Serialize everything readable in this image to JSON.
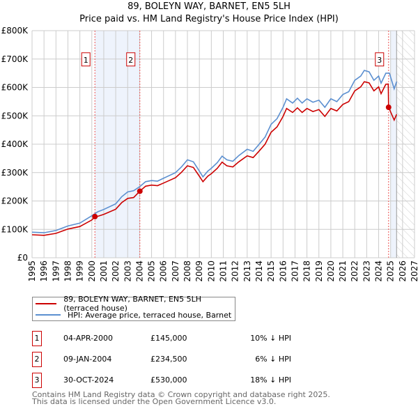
{
  "title": "89, BOLEYN WAY, BARNET, EN5 5LH",
  "subtitle": "Price paid vs. HM Land Registry's House Price Index (HPI)",
  "chart_data": {
    "type": "line",
    "title": "89, BOLEYN WAY, BARNET, EN5 5LH",
    "subtitle": "Price paid vs. HM Land Registry's House Price Index (HPI)",
    "xlim": [
      1995,
      2027
    ],
    "ylim": [
      0,
      800000
    ],
    "grid": true,
    "x_ticks": [
      "1995",
      "1996",
      "1997",
      "1998",
      "1999",
      "2000",
      "2001",
      "2002",
      "2003",
      "2004",
      "2005",
      "2006",
      "2007",
      "2008",
      "2009",
      "2010",
      "2011",
      "2012",
      "2013",
      "2014",
      "2015",
      "2016",
      "2017",
      "2018",
      "2019",
      "2020",
      "2021",
      "2022",
      "2023",
      "2024",
      "2025",
      "2026",
      "2027"
    ],
    "y_ticks": [
      {
        "v": 0,
        "label": "£0"
      },
      {
        "v": 100000,
        "label": "£100K"
      },
      {
        "v": 200000,
        "label": "£200K"
      },
      {
        "v": 300000,
        "label": "£300K"
      },
      {
        "v": 400000,
        "label": "£400K"
      },
      {
        "v": 500000,
        "label": "£500K"
      },
      {
        "v": 600000,
        "label": "£600K"
      },
      {
        "v": 700000,
        "label": "£700K"
      },
      {
        "v": 800000,
        "label": "£800K"
      }
    ],
    "shaded_ranges": [
      [
        2000.26,
        2004.02
      ],
      [
        2025.0,
        2025.5
      ]
    ],
    "forecast_hatch_from": 2025.5,
    "series": [
      {
        "name": "89, BOLEYN WAY, BARNET, EN5 5LH (terraced house)",
        "color": "#cc0000",
        "x": [
          1995,
          1996,
          1997,
          1998,
          1999,
          2000,
          2000.26,
          2000.5,
          2001,
          2002,
          2002.5,
          2003,
          2003.5,
          2004.02,
          2004.5,
          2005,
          2005.5,
          2006,
          2007,
          2007.5,
          2008,
          2008.5,
          2009,
          2009.3,
          2009.7,
          2010,
          2010.5,
          2010.9,
          2011.3,
          2011.8,
          2012.3,
          2013,
          2013.5,
          2014,
          2014.5,
          2015,
          2015.5,
          2016,
          2016.3,
          2016.8,
          2017.2,
          2017.6,
          2018,
          2018.5,
          2019,
          2019.5,
          2020,
          2020.5,
          2021,
          2021.5,
          2022,
          2022.5,
          2022.8,
          2023.2,
          2023.6,
          2024,
          2024.2,
          2024.6,
          2024.8,
          2024.83,
          2025.3,
          2025.5
        ],
        "y": [
          81000,
          79000,
          86000,
          101000,
          110000,
          133000,
          145000,
          146000,
          153000,
          171000,
          194000,
          209000,
          212000,
          234500,
          252000,
          256000,
          254000,
          263000,
          282000,
          301000,
          324000,
          318000,
          287000,
          268000,
          287000,
          296000,
          315000,
          337000,
          324000,
          320000,
          338000,
          359000,
          353000,
          376000,
          400000,
          442000,
          461000,
          498000,
          526000,
          512000,
          528000,
          512000,
          526000,
          515000,
          522000,
          498000,
          526000,
          517000,
          540000,
          550000,
          588000,
          602000,
          620000,
          616000,
          588000,
          602000,
          578000,
          611000,
          612000,
          530000,
          485000,
          505000
        ]
      },
      {
        "name": "HPI: Average price, terraced house, Barnet",
        "color": "#5b8fd0",
        "x": [
          1995,
          1996,
          1997,
          1998,
          1999,
          2000,
          2000.5,
          2001,
          2002,
          2002.5,
          2003,
          2003.5,
          2004,
          2004.5,
          2005,
          2005.5,
          2006,
          2007,
          2007.5,
          2008,
          2008.5,
          2009,
          2009.3,
          2009.7,
          2010,
          2010.5,
          2010.9,
          2011.3,
          2011.8,
          2012.3,
          2013,
          2013.5,
          2014,
          2014.5,
          2015,
          2015.5,
          2016,
          2016.3,
          2016.8,
          2017.2,
          2017.6,
          2018,
          2018.5,
          2019,
          2019.5,
          2020,
          2020.5,
          2021,
          2021.5,
          2022,
          2022.5,
          2022.8,
          2023.2,
          2023.6,
          2024,
          2024.2,
          2024.6,
          2024.9,
          2025.3,
          2025.5
        ],
        "y": [
          90000,
          88000,
          96000,
          112000,
          122000,
          148000,
          162000,
          170000,
          190000,
          215000,
          232000,
          236000,
          250000,
          268000,
          272000,
          270000,
          280000,
          300000,
          320000,
          345000,
          338000,
          305000,
          285000,
          305000,
          315000,
          335000,
          358000,
          345000,
          340000,
          360000,
          382000,
          375000,
          400000,
          425000,
          470000,
          490000,
          530000,
          560000,
          545000,
          562000,
          545000,
          560000,
          548000,
          555000,
          530000,
          560000,
          550000,
          575000,
          585000,
          625000,
          640000,
          660000,
          655000,
          625000,
          640000,
          615000,
          650000,
          650000,
          595000,
          620000
        ]
      }
    ],
    "transactions": [
      {
        "id": "1",
        "x": 2000.26,
        "y": 145000,
        "date": "04-APR-2000",
        "price": "£145,000",
        "hpi": "10% ↓ HPI"
      },
      {
        "id": "2",
        "x": 2004.02,
        "y": 234500,
        "date": "09-JAN-2004",
        "price": "£234,500",
        "hpi": "6% ↓ HPI"
      },
      {
        "id": "3",
        "x": 2024.83,
        "y": 530000,
        "date": "30-OCT-2024",
        "price": "£530,000",
        "hpi": "18% ↓ HPI"
      }
    ]
  },
  "legend": {
    "property": "89, BOLEYN WAY, BARNET, EN5 5LH (terraced house)",
    "hpi": "HPI: Average price, terraced house, Barnet"
  },
  "footer": {
    "line1": "Contains HM Land Registry data © Crown copyright and database right 2025.",
    "line2": "This data is licensed under the Open Government Licence v3.0."
  }
}
